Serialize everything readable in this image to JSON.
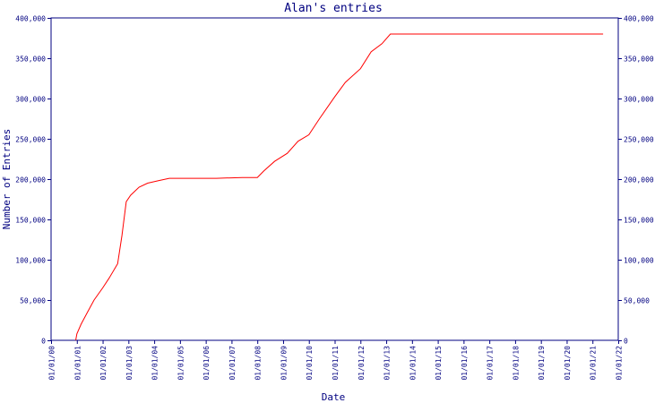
{
  "chart_data": {
    "type": "line",
    "title": "Alan's entries",
    "xlabel": "Date",
    "ylabel": "Number of Entries",
    "ylim": [
      0,
      400000
    ],
    "yticks": [
      0,
      50000,
      100000,
      150000,
      200000,
      250000,
      300000,
      350000,
      400000
    ],
    "ytick_labels": [
      "0",
      "50,000",
      "100,000",
      "150,000",
      "200,000",
      "250,000",
      "300,000",
      "350,000",
      "400,000"
    ],
    "xlim": [
      "2000-01-01",
      "2022-01-01"
    ],
    "xtick_labels": [
      "01/01/00",
      "01/01/01",
      "01/01/02",
      "01/01/03",
      "01/01/04",
      "01/01/05",
      "01/01/06",
      "01/01/07",
      "01/01/08",
      "01/01/09",
      "01/01/10",
      "01/01/11",
      "01/01/12",
      "01/01/13",
      "01/01/14",
      "01/01/15",
      "01/01/16",
      "01/01/17",
      "01/01/18",
      "01/01/19",
      "01/01/20",
      "01/01/21",
      "01/01/22"
    ],
    "grid": false,
    "colors": {
      "line": "#ff0000",
      "axis": "#000080",
      "text": "#000080"
    },
    "series": [
      {
        "points": [
          [
            "2000-12-15",
            0
          ],
          [
            "2001-01-01",
            8000
          ],
          [
            "2001-03-01",
            20000
          ],
          [
            "2001-06-01",
            35000
          ],
          [
            "2001-09-01",
            50000
          ],
          [
            "2002-01-01",
            65000
          ],
          [
            "2002-04-01",
            77000
          ],
          [
            "2002-08-01",
            95000
          ],
          [
            "2002-10-01",
            130000
          ],
          [
            "2002-12-01",
            172000
          ],
          [
            "2003-02-01",
            180000
          ],
          [
            "2003-06-01",
            190000
          ],
          [
            "2003-10-01",
            195000
          ],
          [
            "2004-03-01",
            198000
          ],
          [
            "2004-08-01",
            201000
          ],
          [
            "2005-06-01",
            201000
          ],
          [
            "2006-06-01",
            201000
          ],
          [
            "2007-06-01",
            202000
          ],
          [
            "2008-01-01",
            202000
          ],
          [
            "2008-04-01",
            210000
          ],
          [
            "2008-09-01",
            222000
          ],
          [
            "2009-03-01",
            232000
          ],
          [
            "2009-08-01",
            247000
          ],
          [
            "2010-01-01",
            255000
          ],
          [
            "2010-06-01",
            275000
          ],
          [
            "2011-01-01",
            302000
          ],
          [
            "2011-06-01",
            320000
          ],
          [
            "2012-01-01",
            337000
          ],
          [
            "2012-06-01",
            358000
          ],
          [
            "2012-11-01",
            368000
          ],
          [
            "2013-03-01",
            380000
          ],
          [
            "2021-06-01",
            380000
          ]
        ]
      }
    ]
  }
}
